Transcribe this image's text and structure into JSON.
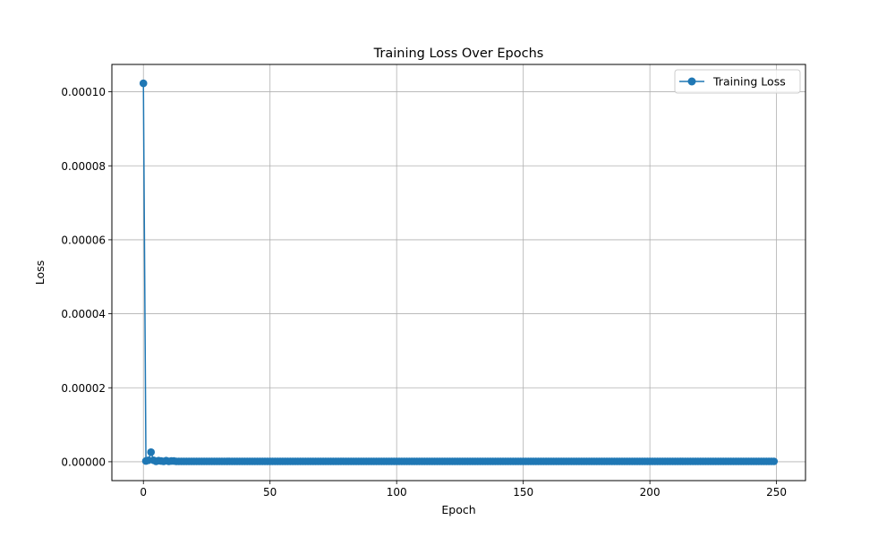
{
  "chart_data": {
    "type": "line",
    "title": "Training Loss Over Epochs",
    "xlabel": "Epoch",
    "ylabel": "Loss",
    "xlim": [
      -12.45,
      261.45
    ],
    "ylim": [
      -5.1e-06,
      0.0001074
    ],
    "x_ticks": [
      0,
      50,
      100,
      150,
      200,
      250
    ],
    "x_tick_labels": [
      "0",
      "50",
      "100",
      "150",
      "200",
      "250"
    ],
    "y_ticks": [
      0,
      2e-05,
      4e-05,
      6e-05,
      8e-05,
      0.0001
    ],
    "y_tick_labels": [
      "0.00000",
      "0.00002",
      "0.00004",
      "0.00006",
      "0.00008",
      "0.00010"
    ],
    "grid": true,
    "legend_position": "top-right",
    "series": [
      {
        "name": "Training Loss",
        "color": "#1f77b4",
        "marker": "circle",
        "x_start": 0,
        "x_end": 249,
        "initial_values": [
          0.0001023,
          2e-07,
          4e-07,
          2.6e-06,
          4e-07,
          1e-07,
          3e-07,
          2e-07,
          1e-07,
          3e-07,
          1e-07,
          2e-07,
          2e-07
        ],
        "remaining_value": 1e-07
      }
    ]
  }
}
